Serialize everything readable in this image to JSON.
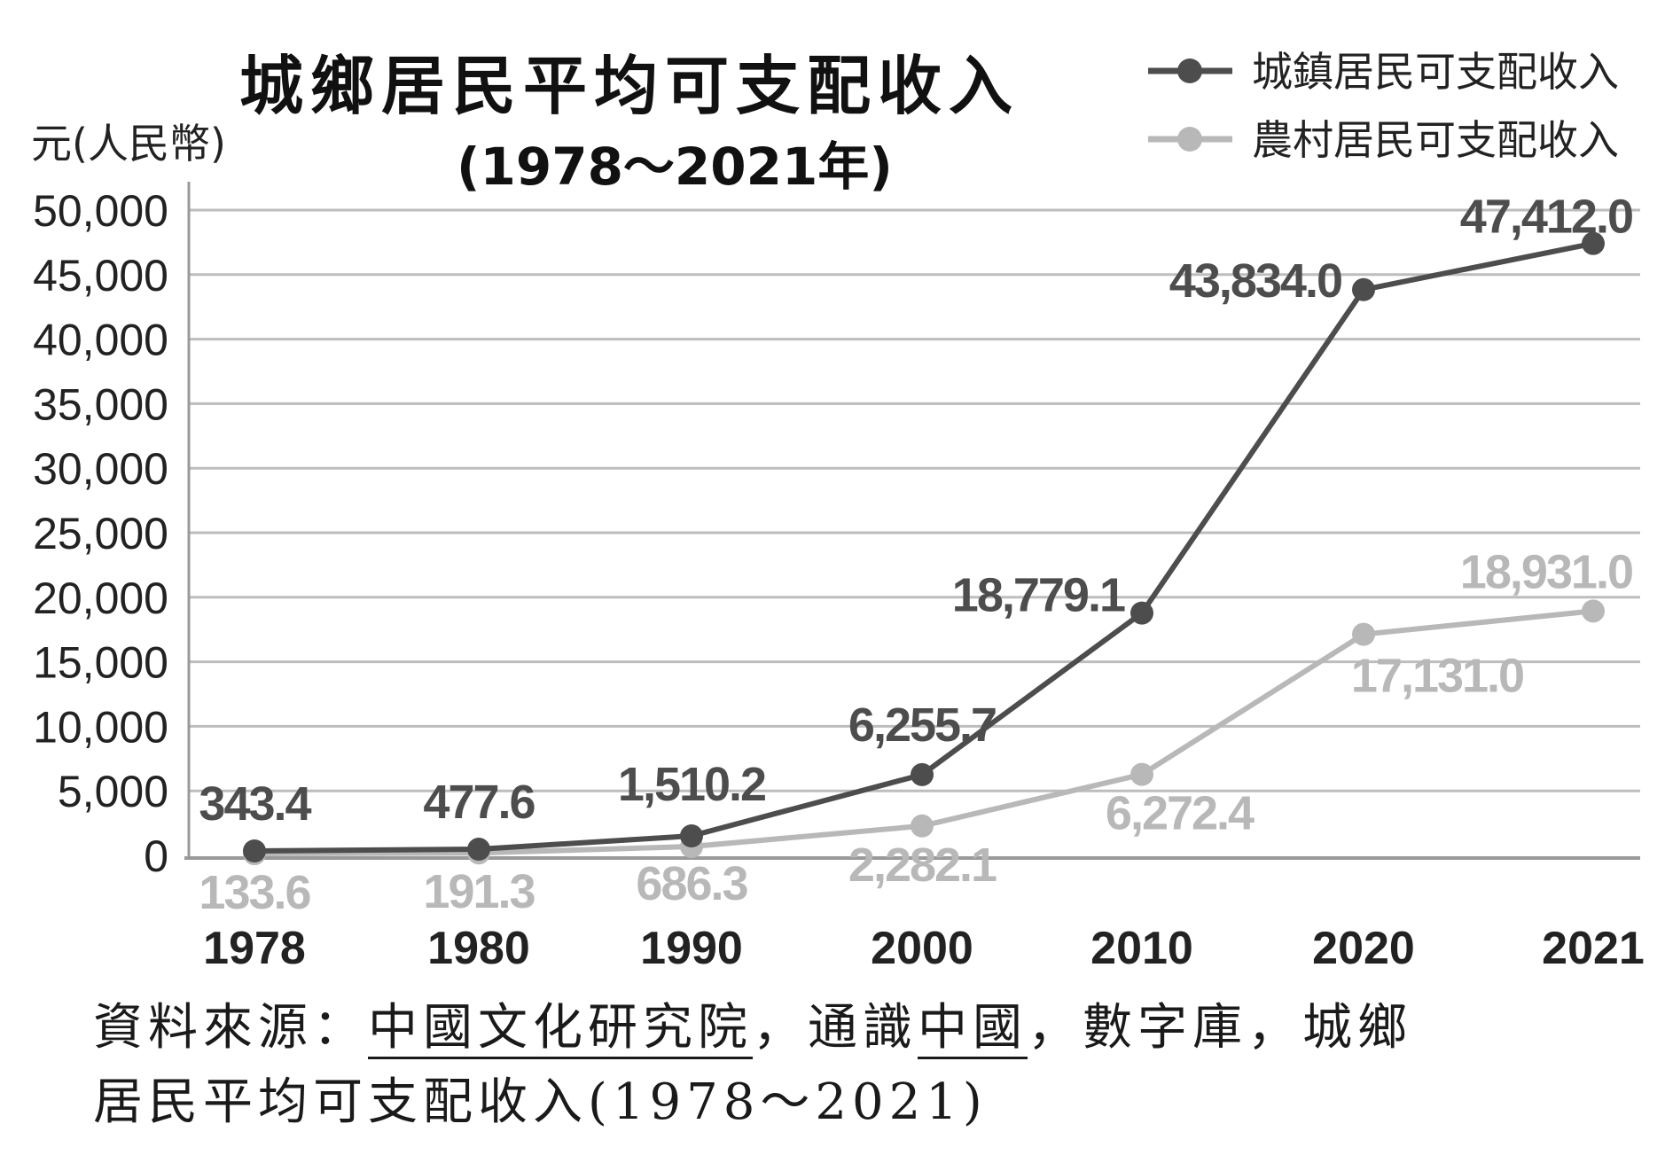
{
  "chart_data": {
    "type": "line",
    "title": "城鄉居民平均可支配收入",
    "subtitle": "(1978～2021年)",
    "ylabel": "元(人民幣)",
    "ylim": [
      0,
      50000
    ],
    "yticks": [
      0,
      5000,
      10000,
      15000,
      20000,
      25000,
      30000,
      35000,
      40000,
      45000,
      50000
    ],
    "ytick_labels": [
      "0",
      "5,000",
      "10,000",
      "15,000",
      "20,000",
      "25,000",
      "30,000",
      "35,000",
      "40,000",
      "45,000",
      "50,000"
    ],
    "categories": [
      "1978",
      "1980",
      "1990",
      "2000",
      "2010",
      "2020",
      "2021"
    ],
    "grid": true,
    "legend_position": "top-right",
    "series": [
      {
        "name": "城鎮居民可支配收入",
        "color": "#4d4d4d",
        "values": [
          343.4,
          477.6,
          1510.2,
          6255.7,
          18779.1,
          43834.0,
          47412.0
        ],
        "labels": [
          "343.4",
          "477.6",
          "1,510.2",
          "6,255.7",
          "18,779.1",
          "43,834.0",
          "47,412.0"
        ]
      },
      {
        "name": "農村居民可支配收入",
        "color": "#b8b8b8",
        "values": [
          133.6,
          191.3,
          686.3,
          2282.1,
          6272.4,
          17131.0,
          18931.0
        ],
        "labels": [
          "133.6",
          "191.3",
          "686.3",
          "2,282.1",
          "6,272.4",
          "17,131.0",
          "18,931.0"
        ]
      }
    ]
  },
  "source": {
    "prefix": "資料來源：",
    "org": "中國文化研究院",
    "sep1": "，通識",
    "section": "中國",
    "sep2": "，數字庫，城鄉",
    "line2": "居民平均可支配收入(1978～2021)"
  }
}
